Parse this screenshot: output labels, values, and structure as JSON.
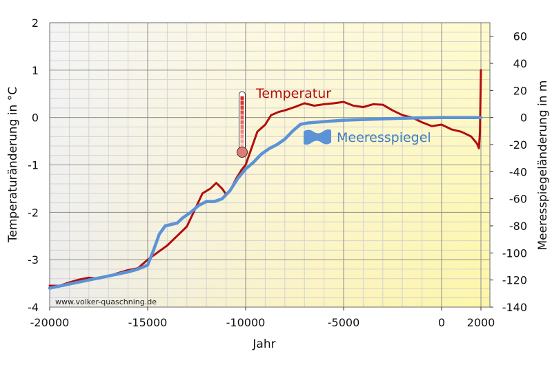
{
  "chart_data": {
    "type": "line",
    "xlabel": "Jahr",
    "ylabel_left": "Temperaturänderung in °C",
    "ylabel_right": "Meeresspiegeländerung in m",
    "watermark": "www.volker-quaschning.de",
    "grid": true,
    "x_ticks": [
      {
        "value": -20000,
        "label": "-20000"
      },
      {
        "value": -15000,
        "label": "-15000"
      },
      {
        "value": -10000,
        "label": "-10000"
      },
      {
        "value": -5000,
        "label": "-5000"
      },
      {
        "value": 0,
        "label": "0"
      },
      {
        "value": 2000,
        "label": "2000"
      }
    ],
    "y_left_ticks": [
      {
        "value": 2,
        "label": "2"
      },
      {
        "value": 1,
        "label": "1"
      },
      {
        "value": 0,
        "label": "0"
      },
      {
        "value": -1,
        "label": "-1"
      },
      {
        "value": -2,
        "label": "-2"
      },
      {
        "value": -3,
        "label": "-3"
      },
      {
        "value": -4,
        "label": "-4"
      }
    ],
    "y_right_ticks": [
      {
        "value": 60,
        "label": "60"
      },
      {
        "value": 40,
        "label": "40"
      },
      {
        "value": 20,
        "label": "20"
      },
      {
        "value": 0,
        "label": "0"
      },
      {
        "value": -20,
        "label": "-20"
      },
      {
        "value": -40,
        "label": "-40"
      },
      {
        "value": -60,
        "label": "-60"
      },
      {
        "value": -80,
        "label": "-80"
      },
      {
        "value": -100,
        "label": "-100"
      },
      {
        "value": -120,
        "label": "-120"
      },
      {
        "value": -140,
        "label": "-140"
      }
    ],
    "series": [
      {
        "name": "Temperatur",
        "axis": "left",
        "color": "#b30d0d",
        "x": [
          -20000,
          -19500,
          -19000,
          -18500,
          -18000,
          -17500,
          -17000,
          -16500,
          -16000,
          -15500,
          -15000,
          -14500,
          -14000,
          -13500,
          -13000,
          -12600,
          -12200,
          -11800,
          -11500,
          -11200,
          -11000,
          -10800,
          -10500,
          -10200,
          -10000,
          -9700,
          -9400,
          -9000,
          -8700,
          -8300,
          -8000,
          -7500,
          -7000,
          -6500,
          -6000,
          -5500,
          -5000,
          -4500,
          -4000,
          -3500,
          -3000,
          -2500,
          -2000,
          -1500,
          -1000,
          -500,
          0,
          500,
          1000,
          1500,
          1800,
          1900,
          1950,
          2000
        ],
        "y": [
          -3.55,
          -3.55,
          -3.48,
          -3.42,
          -3.38,
          -3.4,
          -3.35,
          -3.28,
          -3.22,
          -3.18,
          -3.0,
          -2.85,
          -2.7,
          -2.5,
          -2.3,
          -1.95,
          -1.6,
          -1.5,
          -1.38,
          -1.5,
          -1.62,
          -1.55,
          -1.3,
          -1.1,
          -1.0,
          -0.65,
          -0.3,
          -0.15,
          0.05,
          0.12,
          0.15,
          0.22,
          0.3,
          0.25,
          0.28,
          0.3,
          0.33,
          0.25,
          0.22,
          0.28,
          0.27,
          0.15,
          0.05,
          0.0,
          -0.1,
          -0.18,
          -0.15,
          -0.25,
          -0.3,
          -0.4,
          -0.55,
          -0.65,
          -0.3,
          1.0
        ]
      },
      {
        "name": "Meeresspiegel",
        "axis": "right",
        "color": "#5b93d6",
        "x": [
          -20000,
          -19000,
          -18000,
          -17000,
          -16000,
          -15500,
          -15000,
          -14700,
          -14400,
          -14100,
          -13800,
          -13500,
          -13200,
          -12800,
          -12400,
          -12000,
          -11600,
          -11200,
          -10800,
          -10400,
          -10000,
          -9600,
          -9200,
          -8800,
          -8400,
          -8000,
          -7600,
          -7200,
          -6800,
          -6000,
          -5000,
          -4000,
          -3000,
          -2000,
          -1000,
          0,
          1000,
          1500,
          1900,
          2000
        ],
        "y": [
          -126,
          -123,
          -120,
          -117,
          -114,
          -112,
          -109,
          -98,
          -86,
          -80,
          -79,
          -78,
          -74,
          -70,
          -65,
          -62,
          -62,
          -60,
          -54,
          -45,
          -38,
          -33,
          -27,
          -23,
          -20,
          -16,
          -10,
          -5,
          -4,
          -3,
          -2,
          -1.5,
          -1,
          -0.5,
          -0.2,
          0,
          0,
          0,
          0,
          0
        ]
      }
    ]
  }
}
